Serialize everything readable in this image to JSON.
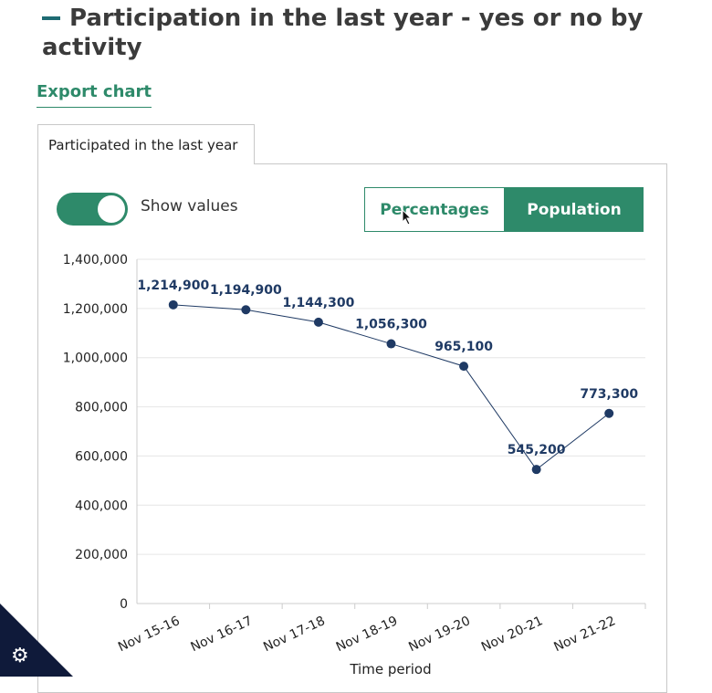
{
  "header": {
    "title": "Participation in the last year - yes or no by activity"
  },
  "export_label": "Export chart",
  "tab_label": "Participated in the last year",
  "toggle": {
    "label": "Show values",
    "on": true
  },
  "view_toggle": {
    "percentages": "Percentages",
    "population": "Population",
    "active": "population"
  },
  "colors": {
    "accent": "#2e8a6a",
    "line": "#1f3a64",
    "dark": "#0f1a3a"
  },
  "chart_data": {
    "type": "line",
    "x": [
      "Nov 15-16",
      "Nov 16-17",
      "Nov 17-18",
      "Nov 18-19",
      "Nov 19-20",
      "Nov 20-21",
      "Nov 21-22"
    ],
    "series": [
      {
        "values": [
          1214900,
          1194900,
          1144300,
          1056300,
          965100,
          545200,
          773300
        ],
        "labels": [
          "1,214,900",
          "1,194,900",
          "1,144,300",
          "1,056,300",
          "965,100",
          "545,200",
          "773,300"
        ]
      }
    ],
    "yticks": [
      "0",
      "200,000",
      "400,000",
      "600,000",
      "800,000",
      "1,000,000",
      "1,200,000",
      "1,400,000"
    ],
    "ylim": [
      0,
      1400000
    ],
    "xlabel": "Time period",
    "grid": true
  }
}
